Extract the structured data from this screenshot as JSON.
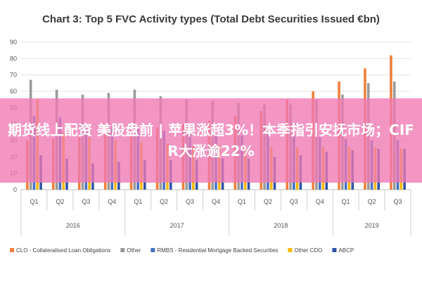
{
  "overlay": {
    "text": "期货线上配资 美股盘前 | 苹果涨超3%！本季指引安抚市场；CIFR大涨逾22%"
  },
  "colors": {
    "clo": "#f07f3c",
    "other": "#9a9a9a",
    "rmbs": "#4472c4",
    "other_cdo": "#f5b800",
    "abcp": "#2e55a6"
  },
  "chart_data": {
    "type": "bar",
    "title": "Chart 3: Top 5 FVC Activity types (Total Debt Securities Issued €bn)",
    "ylim": [
      0,
      90
    ],
    "y_ticks": [
      "0",
      "10",
      "20",
      "30",
      "40",
      "50",
      "60",
      "70",
      "80",
      "90"
    ],
    "categories": [
      "Q1",
      "Q2",
      "Q3",
      "Q4",
      "Q1",
      "Q2",
      "Q3",
      "Q4",
      "Q1",
      "Q2",
      "Q3",
      "Q4",
      "Q1",
      "Q2",
      "Q3"
    ],
    "groups": [
      {
        "label": "2016",
        "count": 4
      },
      {
        "label": "2017",
        "count": 4
      },
      {
        "label": "2018",
        "count": 4
      },
      {
        "label": "2019",
        "count": 3
      }
    ],
    "series": [
      {
        "name": "CLO - Collateralised Loan Obligations",
        "color_key": "clo",
        "values": [
          30,
          31,
          32,
          34,
          37,
          38,
          40,
          42,
          45,
          48,
          55,
          60,
          66,
          74,
          82
        ]
      },
      {
        "name": "Other",
        "color_key": "other",
        "values": [
          67,
          61,
          58,
          59,
          61,
          57,
          55,
          54,
          53,
          52,
          52,
          55,
          58,
          65,
          66
        ]
      },
      {
        "name": "RMBS - Residential Mortgage Backed Securities",
        "color_key": "rmbs",
        "values": [
          45,
          44,
          40,
          38,
          37,
          36,
          35,
          34,
          33,
          34,
          33,
          32,
          31,
          30,
          30
        ]
      },
      {
        "name": "Other CDO",
        "color_key": "other_cdo",
        "values": [
          55,
          35,
          32,
          30,
          29,
          28,
          27,
          27,
          26,
          26,
          26,
          26,
          26,
          26,
          25
        ]
      },
      {
        "name": "ABCP",
        "color_key": "abcp",
        "values": [
          21,
          19,
          16,
          17,
          18,
          18,
          18,
          19,
          19,
          20,
          21,
          23,
          24,
          25,
          25
        ]
      }
    ],
    "grid": true,
    "legend_position": "bottom"
  }
}
